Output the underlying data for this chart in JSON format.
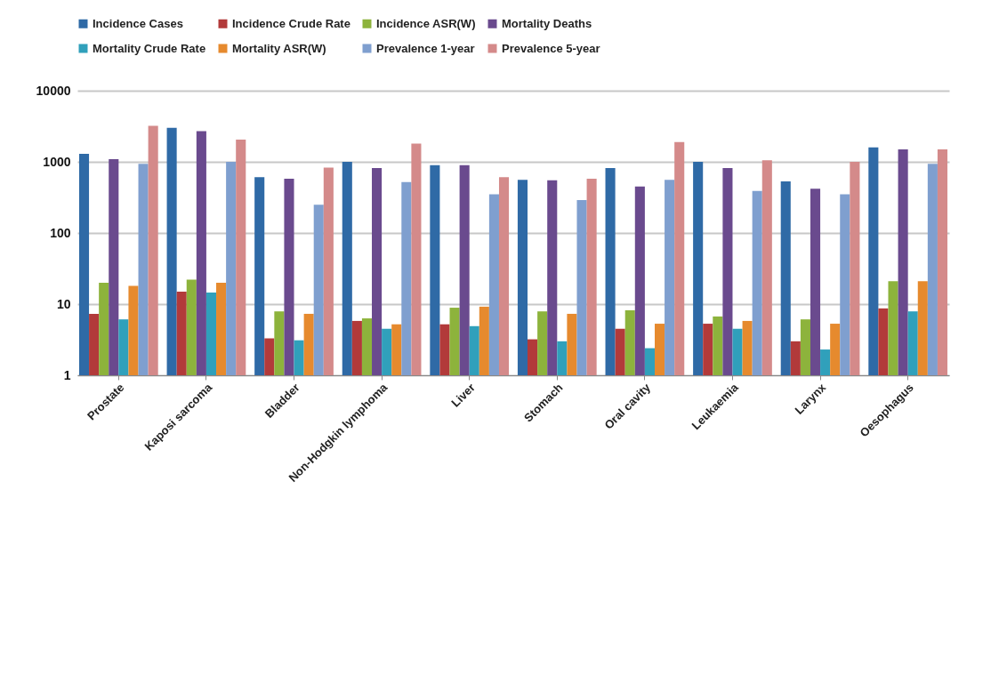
{
  "chart_data": {
    "type": "bar",
    "log": true,
    "grid": "y",
    "legend": "top",
    "categories": [
      "Prostate",
      "Kaposi sarcoma",
      "Bladder",
      "Non-Hodgkin lymphoma",
      "Liver",
      "Stomach",
      "Oral cavity",
      "Leukaemia",
      "Larynx",
      "Oesophagus"
    ],
    "ylim": [
      1,
      10000
    ],
    "yticks": [
      1,
      10,
      100,
      1000,
      10000
    ],
    "series": [
      {
        "name": "Incidence Cases",
        "color": "#2f6aa6",
        "values": [
          1300,
          3000,
          610,
          1000,
          900,
          560,
          820,
          1000,
          530,
          1600
        ]
      },
      {
        "name": "Incidence Crude Rate",
        "color": "#b23a3a",
        "values": [
          7.3,
          15,
          3.3,
          5.8,
          5.2,
          3.2,
          4.5,
          5.3,
          3.0,
          8.7
        ]
      },
      {
        "name": "Incidence ASR(W)",
        "color": "#8db33c",
        "values": [
          20,
          22,
          7.9,
          6.3,
          8.9,
          7.9,
          8.2,
          6.7,
          6.1,
          21
        ]
      },
      {
        "name": "Mortality Deaths",
        "color": "#6a4a8e",
        "values": [
          1090,
          2700,
          580,
          820,
          900,
          550,
          450,
          820,
          420,
          1500
        ]
      },
      {
        "name": "Mortality Crude Rate",
        "color": "#30a0bb",
        "values": [
          6.1,
          14.5,
          3.1,
          4.5,
          4.9,
          3.0,
          2.4,
          4.5,
          2.3,
          7.9
        ]
      },
      {
        "name": "Mortality ASR(W)",
        "color": "#e68a2e",
        "values": [
          18,
          20,
          7.3,
          5.2,
          9.2,
          7.3,
          5.3,
          5.8,
          5.3,
          21
        ]
      },
      {
        "name": "Prevalence 1-year",
        "color": "#7f9fcf",
        "values": [
          940,
          1000,
          250,
          520,
          350,
          290,
          560,
          390,
          350,
          940
        ]
      },
      {
        "name": "Prevalence 5-year",
        "color": "#d48a8a",
        "values": [
          3200,
          2050,
          830,
          1800,
          610,
          580,
          1900,
          1050,
          1000,
          1500
        ]
      }
    ]
  }
}
